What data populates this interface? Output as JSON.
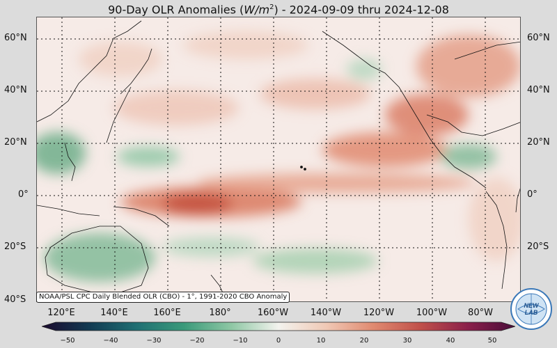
{
  "title": {
    "prefix": "90-Day OLR Anomalies (",
    "unit_base": "W/m",
    "unit_exp": "2",
    "suffix": ") - 2024-09-09 thru 2024-12-08"
  },
  "lat_labels": [
    "60°N",
    "40°N",
    "20°N",
    "0°",
    "20°S",
    "40°S"
  ],
  "lon_labels": [
    "120°E",
    "140°E",
    "160°E",
    "180°",
    "160°W",
    "140°W",
    "120°W",
    "100°W",
    "80°W"
  ],
  "source_note": "NOAA/PSL CPC Daily Blended OLR (CBO) - 1°, 1991-2020 CBO Anomaly",
  "colorbar": {
    "ticks": [
      "−50",
      "−40",
      "−30",
      "−20",
      "−10",
      "0",
      "10",
      "20",
      "30",
      "40",
      "50"
    ],
    "colors": [
      "#2b0f3a",
      "#123a52",
      "#1f6f73",
      "#3a9a7a",
      "#8ec7a4",
      "#f3f3ee",
      "#f0c9b6",
      "#e08a70",
      "#c0504a",
      "#8a1f4a",
      "#4a0d3a"
    ]
  },
  "logo": {
    "text_top": "NEW",
    "text_mid": "LAB"
  },
  "colors": {
    "background": "#dcdcdc",
    "ocean_base": "#f6ebe7",
    "positive_anomaly": "#e0907a",
    "negative_anomaly": "#6fae8a"
  }
}
